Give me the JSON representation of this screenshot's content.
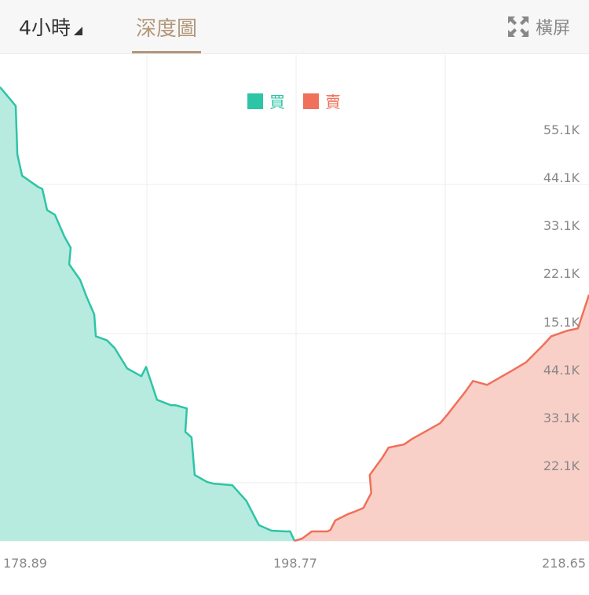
{
  "header": {
    "interval_label": "4小時",
    "tab_depth_label": "深度圖",
    "landscape_label": "橫屏",
    "landscape_icon": "expand-icon"
  },
  "chart_data": {
    "type": "area",
    "x_ticks": [
      "178.89",
      "198.77",
      "218.65"
    ],
    "xlim": [
      178.89,
      218.65
    ],
    "buy_axis_ticks": [
      "55.1K",
      "44.1K",
      "33.1K",
      "22.1K",
      "15.1K"
    ],
    "sell_axis_ticks": [
      "44.1K",
      "33.1K",
      "22.1K"
    ],
    "ylim": [
      0,
      55.1
    ],
    "legend_position": "top-center",
    "series": [
      {
        "name": "買",
        "color": "#2ec4a6",
        "fill": "#b7ebe0",
        "points": [
          [
            178.89,
            57.9
          ],
          [
            179.95,
            55.5
          ],
          [
            180.06,
            49.3
          ],
          [
            180.38,
            46.6
          ],
          [
            181.43,
            45.2
          ],
          [
            181.75,
            44.9
          ],
          [
            182.07,
            42.2
          ],
          [
            182.6,
            41.6
          ],
          [
            183.24,
            38.8
          ],
          [
            183.66,
            37.4
          ],
          [
            183.56,
            35.3
          ],
          [
            184.3,
            33.3
          ],
          [
            184.72,
            31.2
          ],
          [
            185.25,
            28.9
          ],
          [
            185.36,
            26.1
          ],
          [
            186.1,
            25.6
          ],
          [
            186.63,
            24.6
          ],
          [
            187.48,
            22.0
          ],
          [
            188.43,
            21.0
          ],
          [
            188.75,
            22.2
          ],
          [
            189.49,
            18.0
          ],
          [
            190.44,
            17.3
          ],
          [
            190.76,
            17.3
          ],
          [
            191.5,
            16.9
          ],
          [
            191.4,
            13.9
          ],
          [
            191.82,
            13.2
          ],
          [
            192.03,
            8.4
          ],
          [
            192.88,
            7.5
          ],
          [
            193.3,
            7.3
          ],
          [
            194.57,
            7.1
          ],
          [
            195.52,
            5.1
          ],
          [
            196.37,
            2.0
          ],
          [
            197.21,
            1.3
          ],
          [
            198.16,
            1.2
          ],
          [
            198.48,
            1.2
          ],
          [
            198.77,
            0.0
          ]
        ]
      },
      {
        "name": "賣",
        "color": "#f0705a",
        "fill": "#f8d0c8",
        "points": [
          [
            198.77,
            0.0
          ],
          [
            199.3,
            0.3
          ],
          [
            199.93,
            1.2
          ],
          [
            200.99,
            1.2
          ],
          [
            201.2,
            1.4
          ],
          [
            201.52,
            2.6
          ],
          [
            202.36,
            3.4
          ],
          [
            202.79,
            3.7
          ],
          [
            203.42,
            4.2
          ],
          [
            203.95,
            6.1
          ],
          [
            203.85,
            8.4
          ],
          [
            204.69,
            10.6
          ],
          [
            205.12,
            11.9
          ],
          [
            206.17,
            12.3
          ],
          [
            206.7,
            13.0
          ],
          [
            207.75,
            14.1
          ],
          [
            208.6,
            15.0
          ],
          [
            209.13,
            16.2
          ],
          [
            210.29,
            19.0
          ],
          [
            210.82,
            20.4
          ],
          [
            211.77,
            19.9
          ],
          [
            213.35,
            21.6
          ],
          [
            214.41,
            22.8
          ],
          [
            215.04,
            24.0
          ],
          [
            215.57,
            25.0
          ],
          [
            216.1,
            26.1
          ],
          [
            217.16,
            26.8
          ],
          [
            217.9,
            27.1
          ],
          [
            218.65,
            31.4
          ]
        ]
      }
    ]
  }
}
